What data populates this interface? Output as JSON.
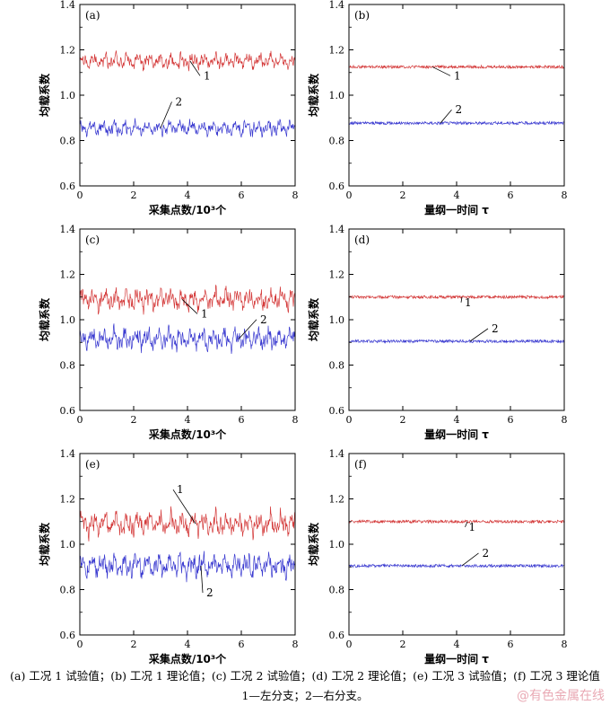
{
  "chart_data": [
    {
      "panel": "(a)",
      "type": "line",
      "xlabel": "采集点数/10³个",
      "ylabel": "均载系数",
      "xlim": [
        0,
        8
      ],
      "ylim": [
        0.6,
        1.4
      ],
      "xticks": [
        0,
        2,
        4,
        6,
        8
      ],
      "yticks": [
        0.6,
        0.8,
        1.0,
        1.2,
        1.4
      ],
      "grid": false,
      "legend": "none",
      "style": "fluctuating",
      "series": [
        {
          "label": "1",
          "mean": 1.15,
          "amplitude": 0.035,
          "color": "#d43a3a"
        },
        {
          "label": "2",
          "mean": 0.855,
          "amplitude": 0.035,
          "color": "#3a3ad0"
        }
      ]
    },
    {
      "panel": "(b)",
      "type": "line",
      "xlabel": "量纲一时间 τ",
      "ylabel": "均载系数",
      "xlim": [
        0,
        8
      ],
      "ylim": [
        0.6,
        1.4
      ],
      "xticks": [
        0,
        2,
        4,
        6,
        8
      ],
      "yticks": [
        0.6,
        0.8,
        1.0,
        1.2,
        1.4
      ],
      "grid": false,
      "legend": "none",
      "style": "flat",
      "series": [
        {
          "label": "1",
          "mean": 1.125,
          "amplitude": 0.008,
          "color": "#d43a3a"
        },
        {
          "label": "2",
          "mean": 0.877,
          "amplitude": 0.008,
          "color": "#3a3ad0"
        }
      ]
    },
    {
      "panel": "(c)",
      "type": "line",
      "xlabel": "采集点数/10³个",
      "ylabel": "均载系数",
      "xlim": [
        0,
        8
      ],
      "ylim": [
        0.6,
        1.4
      ],
      "xticks": [
        0,
        2,
        4,
        6,
        8
      ],
      "yticks": [
        0.6,
        0.8,
        1.0,
        1.2,
        1.4
      ],
      "grid": false,
      "legend": "none",
      "style": "fluctuating",
      "series": [
        {
          "label": "1",
          "mean": 1.09,
          "amplitude": 0.05,
          "color": "#d43a3a"
        },
        {
          "label": "2",
          "mean": 0.915,
          "amplitude": 0.05,
          "color": "#3a3ad0"
        }
      ]
    },
    {
      "panel": "(d)",
      "type": "line",
      "xlabel": "量纲一时间 τ",
      "ylabel": "均载系数",
      "xlim": [
        0,
        8
      ],
      "ylim": [
        0.6,
        1.4
      ],
      "xticks": [
        0,
        2,
        4,
        6,
        8
      ],
      "yticks": [
        0.6,
        0.8,
        1.0,
        1.2,
        1.4
      ],
      "grid": false,
      "legend": "none",
      "style": "flat",
      "series": [
        {
          "label": "1",
          "mean": 1.1,
          "amplitude": 0.008,
          "color": "#d43a3a"
        },
        {
          "label": "2",
          "mean": 0.905,
          "amplitude": 0.008,
          "color": "#3a3ad0"
        }
      ]
    },
    {
      "panel": "(e)",
      "type": "line",
      "xlabel": "采集点数/10³个",
      "ylabel": "均载系数",
      "xlim": [
        0,
        8
      ],
      "ylim": [
        0.6,
        1.4
      ],
      "xticks": [
        0,
        2,
        4,
        6,
        8
      ],
      "yticks": [
        0.6,
        0.8,
        1.0,
        1.2,
        1.4
      ],
      "grid": false,
      "legend": "none",
      "style": "fluctuating",
      "series": [
        {
          "label": "1",
          "mean": 1.09,
          "amplitude": 0.055,
          "color": "#d43a3a"
        },
        {
          "label": "2",
          "mean": 0.905,
          "amplitude": 0.055,
          "color": "#3a3ad0"
        }
      ]
    },
    {
      "panel": "(f)",
      "type": "line",
      "xlabel": "量纲一时间 τ",
      "ylabel": "均载系数",
      "xlim": [
        0,
        8
      ],
      "ylim": [
        0.6,
        1.4
      ],
      "xticks": [
        0,
        2,
        4,
        6,
        8
      ],
      "yticks": [
        0.6,
        0.8,
        1.0,
        1.2,
        1.4
      ],
      "grid": false,
      "legend": "none",
      "style": "flat",
      "series": [
        {
          "label": "1",
          "mean": 1.1,
          "amplitude": 0.008,
          "color": "#d43a3a"
        },
        {
          "label": "2",
          "mean": 0.905,
          "amplitude": 0.008,
          "color": "#3a3ad0"
        }
      ]
    }
  ],
  "annotations": [
    {
      "panel": 0,
      "series": 0,
      "text": "1",
      "x": 4.1,
      "lx": 4.6,
      "ly": 1.07
    },
    {
      "panel": 0,
      "series": 1,
      "text": "2",
      "x": 3.0,
      "lx": 3.55,
      "ly": 0.955
    },
    {
      "panel": 1,
      "series": 0,
      "text": "1",
      "x": 3.1,
      "lx": 3.9,
      "ly": 1.07
    },
    {
      "panel": 1,
      "series": 1,
      "text": "2",
      "x": 3.4,
      "lx": 3.95,
      "ly": 0.92
    },
    {
      "panel": 2,
      "series": 0,
      "text": "1",
      "x": 3.8,
      "lx": 4.5,
      "ly": 1.01
    },
    {
      "panel": 2,
      "series": 1,
      "text": "2",
      "x": 5.9,
      "lx": 6.7,
      "ly": 0.985
    },
    {
      "panel": 3,
      "series": 0,
      "text": "1",
      "x": 4.2,
      "lx": 4.3,
      "ly": 1.06
    },
    {
      "panel": 3,
      "series": 1,
      "text": "2",
      "x": 4.5,
      "lx": 5.3,
      "ly": 0.945
    },
    {
      "panel": 4,
      "series": 0,
      "text": "1",
      "x": 4.3,
      "lx": 3.6,
      "ly": 1.225
    },
    {
      "panel": 4,
      "series": 1,
      "text": "2",
      "x": 4.5,
      "lx": 4.7,
      "ly": 0.77
    },
    {
      "panel": 5,
      "series": 0,
      "text": "1",
      "x": 4.4,
      "lx": 4.45,
      "ly": 1.06
    },
    {
      "panel": 5,
      "series": 1,
      "text": "2",
      "x": 4.2,
      "lx": 4.95,
      "ly": 0.945
    }
  ],
  "caption": {
    "line1": "(a) 工况 1 试验值；(b) 工况 1 理论值；(c) 工况 2 试验值；(d) 工况 2 理论值；(e) 工况 3 试验值；(f) 工况 3 理论值",
    "line2": "1—左分支；2—右分支。"
  },
  "watermark": "@有色金属在线"
}
